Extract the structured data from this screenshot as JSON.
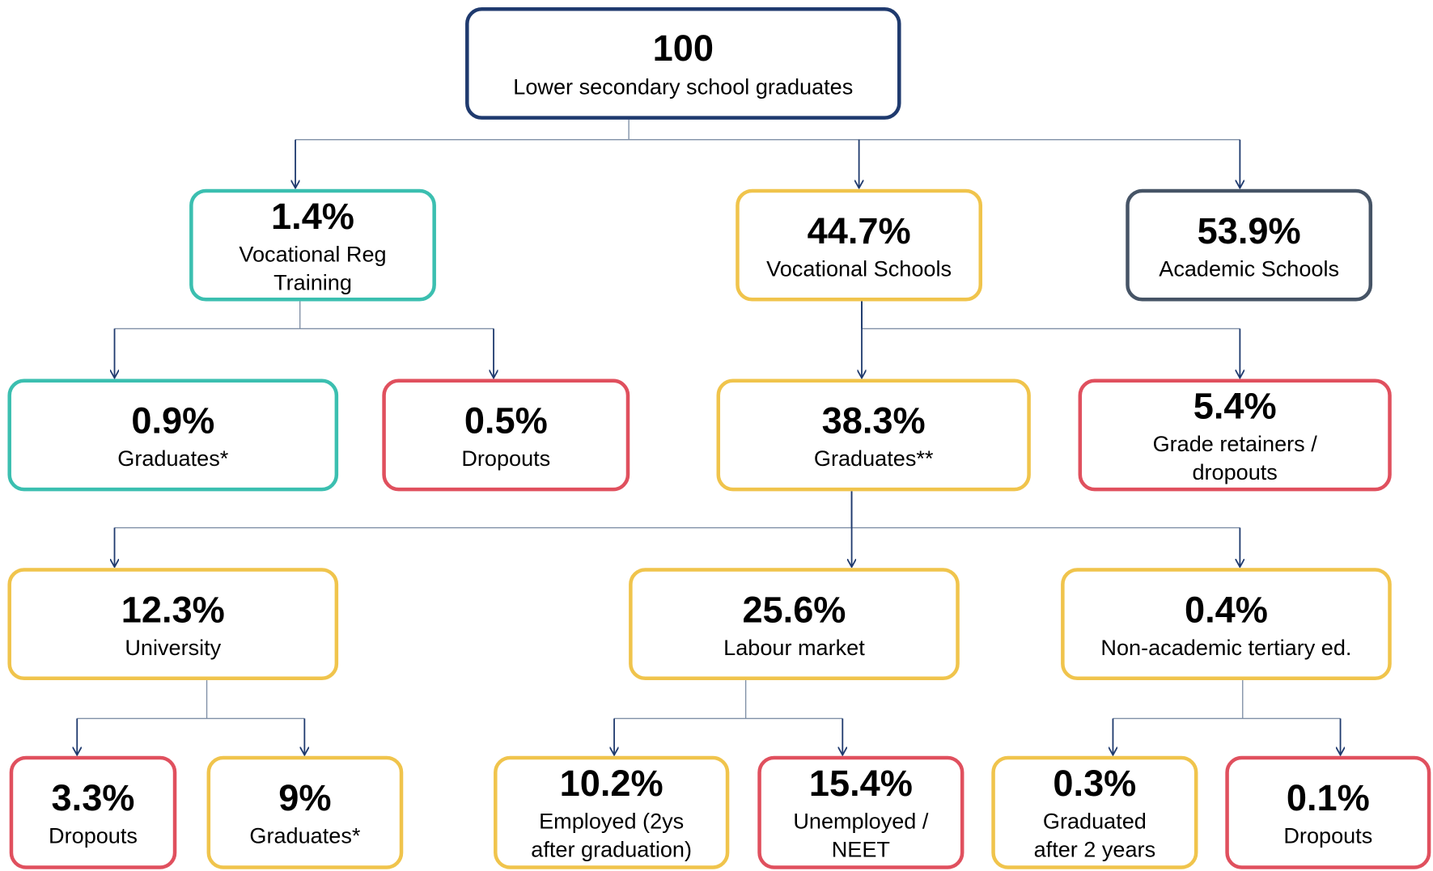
{
  "nodes": [
    {
      "value": "100",
      "label": [
        "Lower secondary school graduates"
      ]
    },
    {
      "value": "1.4%",
      "label": [
        "Vocational Reg",
        "Training"
      ]
    },
    {
      "value": "44.7%",
      "label": [
        "Vocational Schools"
      ]
    },
    {
      "value": "53.9%",
      "label": [
        "Academic Schools"
      ]
    },
    {
      "value": "0.9%",
      "label": [
        "Graduates*"
      ]
    },
    {
      "value": "0.5%",
      "label": [
        "Dropouts"
      ]
    },
    {
      "value": "38.3%",
      "label": [
        "Graduates**"
      ]
    },
    {
      "value": "5.4%",
      "label": [
        "Grade retainers /",
        "dropouts"
      ]
    },
    {
      "value": "12.3%",
      "label": [
        "University"
      ]
    },
    {
      "value": "25.6%",
      "label": [
        "Labour market"
      ]
    },
    {
      "value": "0.4%",
      "label": [
        "Non-academic tertiary ed."
      ]
    },
    {
      "value": "3.3%",
      "label": [
        "Dropouts"
      ]
    },
    {
      "value": "9%",
      "label": [
        "Graduates*"
      ]
    },
    {
      "value": "10.2%",
      "label": [
        "Employed (2ys",
        "after graduation)"
      ]
    },
    {
      "value": "15.4%",
      "label": [
        "Unemployed /",
        "NEET"
      ]
    },
    {
      "value": "0.3%",
      "label": [
        "Graduated",
        "after 2 years"
      ]
    },
    {
      "value": "0.1%",
      "label": [
        "Dropouts"
      ]
    }
  ]
}
